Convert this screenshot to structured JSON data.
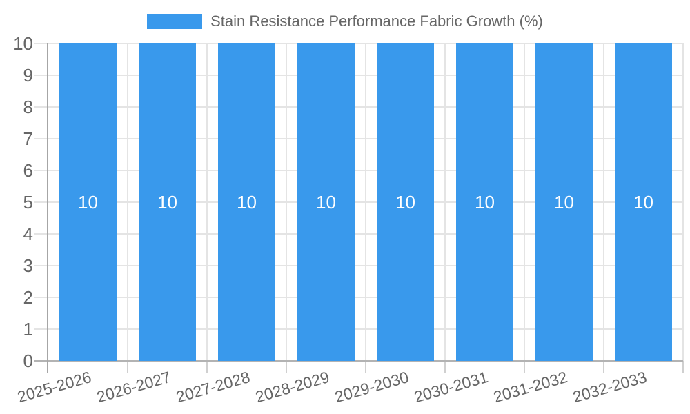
{
  "chart_data": {
    "type": "bar",
    "title": "Stain Resistance Performance Fabric Growth (%)",
    "legend": [
      "Stain Resistance Performance Fabric Growth (%)"
    ],
    "legend_position": "top",
    "categories": [
      "2025-2026",
      "2026-2027",
      "2027-2028",
      "2028-2029",
      "2029-2030",
      "2030-2031",
      "2031-2032",
      "2032-2033"
    ],
    "values": [
      10,
      10,
      10,
      10,
      10,
      10,
      10,
      10
    ],
    "bar_labels": [
      "10",
      "10",
      "10",
      "10",
      "10",
      "10",
      "10",
      "10"
    ],
    "xlabel": "",
    "ylabel": "",
    "ylim": [
      0,
      10
    ],
    "yticks": [
      0,
      1,
      2,
      3,
      4,
      5,
      6,
      7,
      8,
      9,
      10
    ],
    "grid": true,
    "colors": {
      "bar": "#3999EC",
      "tick_text": "#666666",
      "title_text": "#666666",
      "bar_label_text": "#FFFFFF",
      "gridline": "#E4E4E4",
      "minor_tick": "#D0D0D0",
      "axis_line": "#A6A6A6",
      "zero_line": "#B3B3B3"
    }
  }
}
